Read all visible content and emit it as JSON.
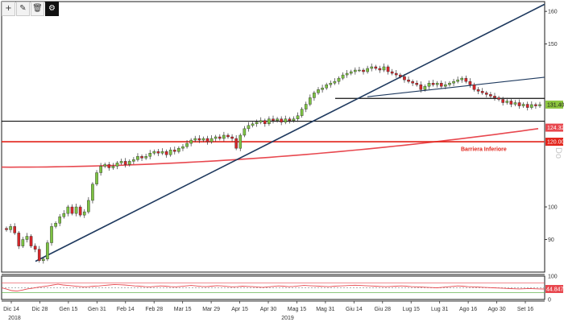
{
  "toolbar": {
    "buttons": [
      {
        "icon": "crosshair-icon",
        "glyph": "+",
        "active": false
      },
      {
        "icon": "pencil-icon",
        "glyph": "✎",
        "active": false
      },
      {
        "icon": "trash-icon",
        "glyph": "🗑",
        "active": false
      },
      {
        "icon": "gear-icon",
        "glyph": "⚙",
        "active": true
      }
    ]
  },
  "colors": {
    "up": "#7cc242",
    "down": "#d7262a",
    "trend": "#1f3a5f",
    "barrier": "#e2231a",
    "ma": "#e8484f",
    "support": "#111111",
    "price_tag": "#8dc63f",
    "ma_tag": "#e8484f"
  },
  "chart_data": [
    {
      "type": "candlestick",
      "x_ticks": [
        "Dic 14",
        "Dic 28",
        "Gen 15",
        "Gen 31",
        "Feb 14",
        "Feb 28",
        "Mar 15",
        "Mar 29",
        "Apr 15",
        "Apr 30",
        "Mag 15",
        "Mag 31",
        "Giu 14",
        "Giu 28",
        "Lug 15",
        "Lug 31",
        "Ago 16",
        "Ago 30",
        "Set 16"
      ],
      "years": [
        "2018",
        "2019"
      ],
      "y_ticks": [
        90,
        100,
        150,
        160
      ],
      "ylim": [
        80,
        163
      ],
      "price_tag": "131.40",
      "ma_tag": "124.322",
      "barrier_tag": "120.00",
      "barrier_level": 120,
      "support_level": 126.3,
      "resistance_level": 133.3,
      "annotation": "Barriera Inferiore",
      "ma_start": 112.2,
      "ma_end": 124.322,
      "watermark": "Do",
      "closes": [
        93.0,
        94.0,
        92.0,
        88.0,
        90.0,
        91.0,
        88.0,
        87.0,
        83.5,
        84.0,
        89.0,
        94.0,
        95.0,
        97.0,
        98.0,
        100.0,
        98.0,
        100.0,
        97.5,
        98.5,
        102.0,
        107.0,
        110.5,
        112.5,
        113.0,
        112.0,
        112.5,
        113.5,
        114.0,
        113.0,
        114.0,
        114.5,
        115.5,
        115.0,
        115.5,
        116.5,
        117.0,
        116.5,
        117.0,
        116.0,
        117.5,
        117.0,
        118.0,
        118.5,
        119.5,
        120.5,
        121.0,
        120.5,
        121.0,
        120.0,
        121.0,
        121.5,
        121.0,
        122.0,
        121.5,
        121.0,
        118.0,
        122.0,
        124.0,
        125.0,
        125.5,
        126.0,
        126.5,
        125.5,
        127.0,
        126.5,
        127.0,
        126.0,
        127.0,
        126.5,
        127.0,
        128.0,
        130.0,
        131.5,
        133.5,
        135.0,
        136.0,
        136.5,
        137.5,
        138.0,
        138.5,
        139.5,
        140.5,
        141.0,
        141.5,
        142.0,
        142.0,
        141.5,
        142.5,
        143.0,
        142.5,
        142.0,
        143.0,
        141.5,
        141.0,
        140.5,
        140.0,
        139.0,
        138.5,
        138.0,
        137.5,
        136.0,
        137.0,
        138.0,
        137.5,
        138.0,
        137.0,
        137.5,
        138.0,
        138.5,
        139.0,
        139.5,
        138.5,
        137.5,
        136.0,
        135.5,
        135.0,
        134.5,
        134.0,
        133.5,
        133.0,
        132.0,
        132.5,
        131.5,
        132.0,
        131.0,
        131.5,
        130.5,
        131.4,
        131.0,
        131.4
      ],
      "osc_ticks": [
        0,
        100
      ],
      "osc_ylim": [
        0,
        100
      ],
      "osc_tag": "44.8474",
      "osc_levels": [
        70,
        50,
        30
      ],
      "osc_values": [
        50,
        44,
        38,
        36,
        40,
        45,
        48,
        52,
        55,
        58,
        62,
        65,
        62,
        60,
        58,
        56,
        54,
        55,
        57,
        58,
        60,
        62,
        64,
        63,
        62,
        60,
        58,
        57,
        55,
        54,
        56,
        58,
        57,
        55,
        54,
        56,
        58,
        60,
        58,
        56,
        55,
        57,
        59,
        58,
        56,
        54,
        55,
        57,
        56,
        55,
        53,
        52,
        54,
        56,
        58,
        57,
        55,
        56,
        58,
        60,
        59,
        58,
        57,
        56,
        55,
        57,
        58,
        59,
        60,
        61,
        60,
        59,
        58,
        57,
        56,
        55,
        56,
        57,
        58,
        57,
        55,
        54,
        53,
        52,
        51,
        50,
        52,
        54,
        56,
        58,
        57,
        55,
        54,
        53,
        52,
        51,
        50,
        49,
        48,
        47,
        46,
        45,
        46,
        47,
        46,
        45,
        44.8474
      ]
    }
  ]
}
